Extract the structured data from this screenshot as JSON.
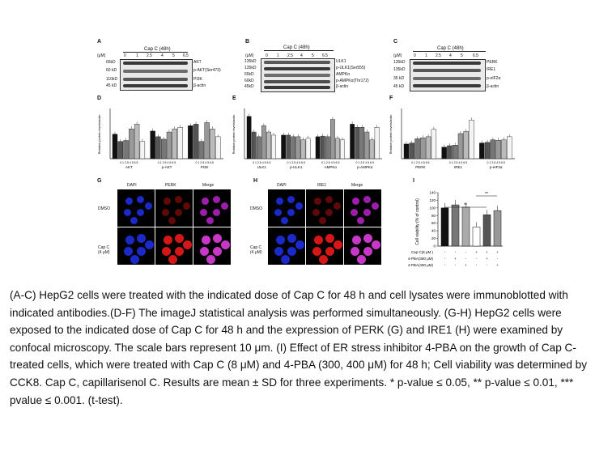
{
  "panels": {
    "A": {
      "letter": "A",
      "unit": "(μM)",
      "title": "Cap C (48h)",
      "doses": [
        "0",
        "1",
        "2.5",
        "4",
        "5",
        "6.5"
      ],
      "markers": [
        "65kD",
        "60 kD",
        "110kD",
        "45 kD"
      ],
      "rows": [
        "AKT",
        "p-AKT(Ser473)",
        "PI3K",
        "β-actin"
      ]
    },
    "B": {
      "letter": "B",
      "unit": "(μM)",
      "title": "Cap C (48h)",
      "doses": [
        "0",
        "1",
        "2.5",
        "4",
        "5",
        "6.5"
      ],
      "markers": [
        "135kD",
        "135kD",
        "65kD",
        "60kD",
        "45kD"
      ],
      "rows": [
        "ULK1",
        "p-ULK1(Ser555)",
        "AMPKα",
        "p-AMPKα(Thr172)",
        "β-actin"
      ]
    },
    "C": {
      "letter": "C",
      "unit": "(μM)",
      "title": "Cap C (48h)",
      "doses": [
        "0",
        "1",
        "2.5",
        "4",
        "5",
        "6.5"
      ],
      "markers": [
        "135kD",
        "135kD",
        "35 kD",
        "45 kD"
      ],
      "rows": [
        "PERK",
        "IRE1",
        "p-eIF2α",
        "β-actin"
      ]
    },
    "D": {
      "letter": "D",
      "ylabel": "Relative protein levels/actin",
      "groups": [
        "AKT",
        "p-AKT",
        "PI3K"
      ],
      "doses": "0 1 2.5 4 5 6.5"
    },
    "E": {
      "letter": "E",
      "ylabel": "Relative protein levels/actin",
      "groups": [
        "ULK1",
        "p-ULK1",
        "AMPKα",
        "p-AMPKα"
      ],
      "doses": "0 1 2.5 4 5 6.5"
    },
    "F": {
      "letter": "F",
      "ylabel": "Relative protein levels/actin",
      "groups": [
        "PERK",
        "IRE1",
        "p-eIF2α"
      ],
      "doses": "0 1 2.5 4 5 6.5"
    },
    "G": {
      "letter": "G",
      "cols": [
        "DAPI",
        "PERK",
        "Merge"
      ],
      "rows": [
        "DMSO",
        "Cap C\n(4 μM)"
      ]
    },
    "H": {
      "letter": "H",
      "cols": [
        "DAPI",
        "IRE1",
        "Merge"
      ],
      "rows": [
        "DMSO",
        "Cap C\n(4 μM)"
      ]
    },
    "I": {
      "letter": "I",
      "ylabel": "Cell viability (% of control)",
      "yticks": [
        "0",
        "20",
        "40",
        "60",
        "80",
        "100",
        "120",
        "140"
      ],
      "treatments": [
        {
          "name": "Cap C(8 μM )",
          "marks": [
            "-",
            "-",
            "-",
            "+",
            "+",
            "+"
          ]
        },
        {
          "name": "4-PBA(300 μM)",
          "marks": [
            "-",
            "+",
            "-",
            "-",
            "+",
            "-"
          ]
        },
        {
          "name": "4-PBA(400 μM)",
          "marks": [
            "-",
            "-",
            "+",
            "-",
            "-",
            "+"
          ]
        }
      ],
      "sig": [
        "**",
        "**"
      ]
    }
  },
  "chart_data": [
    {
      "type": "bar",
      "panel": "D",
      "ylabel": "Relative protein levels/actin",
      "ylim": [
        0,
        1.6
      ],
      "categories": [
        "AKT",
        "p-AKT",
        "PI3K"
      ],
      "series": [
        {
          "name": "0",
          "values": [
            0.78,
            0.88,
            1.05
          ]
        },
        {
          "name": "1",
          "values": [
            0.55,
            0.7,
            1.1
          ]
        },
        {
          "name": "2.5",
          "values": [
            0.58,
            0.62,
            0.55
          ]
        },
        {
          "name": "4",
          "values": [
            0.95,
            0.85,
            1.15
          ]
        },
        {
          "name": "5",
          "values": [
            1.1,
            0.95,
            0.95
          ]
        },
        {
          "name": "6.5",
          "values": [
            0.55,
            1.0,
            0.7
          ]
        }
      ]
    },
    {
      "type": "bar",
      "panel": "E",
      "ylabel": "Relative protein levels/actin",
      "ylim": [
        0,
        1.6
      ],
      "categories": [
        "ULK1",
        "p-ULK1",
        "AMPKα",
        "p-AMPKα"
      ],
      "series": [
        {
          "name": "0",
          "values": [
            1.35,
            0.75,
            0.7,
            1.1
          ]
        },
        {
          "name": "1",
          "values": [
            0.85,
            0.75,
            0.72,
            1.0
          ]
        },
        {
          "name": "2.5",
          "values": [
            0.7,
            0.7,
            0.7,
            1.0
          ]
        },
        {
          "name": "4",
          "values": [
            1.05,
            0.7,
            1.25,
            0.85
          ]
        },
        {
          "name": "5",
          "values": [
            0.85,
            0.6,
            0.65,
            0.6
          ]
        },
        {
          "name": "6.5",
          "values": [
            0.75,
            0.65,
            0.6,
            1.0
          ]
        }
      ]
    },
    {
      "type": "bar",
      "panel": "F",
      "ylabel": "Relative protein levels/actin",
      "ylim": [
        0,
        2.4
      ],
      "categories": [
        "PERK",
        "IRE1",
        "p-eIF2α"
      ],
      "series": [
        {
          "name": "0",
          "values": [
            0.7,
            0.55,
            0.75
          ]
        },
        {
          "name": "1",
          "values": [
            0.75,
            0.62,
            0.78
          ]
        },
        {
          "name": "2.5",
          "values": [
            0.95,
            0.65,
            0.9
          ]
        },
        {
          "name": "4",
          "values": [
            1.0,
            1.2,
            0.88
          ]
        },
        {
          "name": "5",
          "values": [
            1.05,
            1.3,
            0.9
          ]
        },
        {
          "name": "6.5",
          "values": [
            1.4,
            1.85,
            1.05
          ]
        }
      ]
    },
    {
      "type": "bar",
      "panel": "I",
      "ylabel": "Cell viability (% of control)",
      "ylim": [
        0,
        140
      ],
      "categories": [
        "1",
        "2",
        "3",
        "4",
        "5",
        "6"
      ],
      "values": [
        100,
        108,
        102,
        50,
        82,
        93
      ]
    }
  ],
  "caption": "(A-C) HepG2 cells were treated with the indicated dose of Cap C for 48 h and cell lysates were immunoblotted with indicated antibodies.(D-F) The imageJ statistical analysis was performed simultaneously. (G-H) HepG2 cells were exposed to the indicated dose of Cap C for 48 h and the expression of PERK (G) and IRE1 (H) were examined by confocal microscopy. The scale bars represent 10 μm. (I) Effect of ER stress inhibitor 4-PBA on the growth of Cap C-treated cells, which were treated with Cap C (8 μM) and 4-PBA (300, 400 μM) for 48 h; Cell viability was determined by CCK8. Cap C, capillarisenol C. Results are mean ± SD for three experiments. * p-value ≤ 0.05, ** p-value ≤ 0.01, *** pvalue ≤ 0.001. (t-test)."
}
